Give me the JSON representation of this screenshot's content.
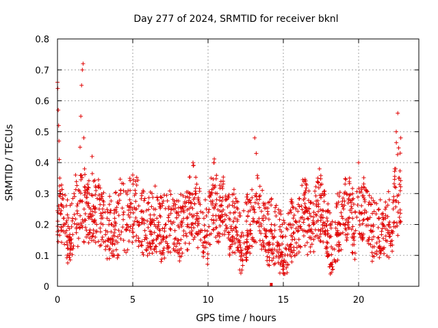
{
  "chart_data": {
    "type": "scatter",
    "title": "Day 277 of 2024, SRMTID for receiver bknl",
    "xlabel": "GPS time / hours",
    "ylabel": "SRMTID / TECUs",
    "xlim": [
      0,
      24
    ],
    "ylim": [
      0,
      0.8
    ],
    "xticks": [
      0,
      5,
      10,
      15,
      20
    ],
    "xtick_labels": [
      "0",
      "5",
      "10",
      "15",
      "20"
    ],
    "yticks": [
      0,
      0.1,
      0.2,
      0.3,
      0.4,
      0.5,
      0.6,
      0.7,
      0.8
    ],
    "ytick_labels": [
      "0",
      "0.1",
      "0.2",
      "0.3",
      "0.4",
      "0.5",
      "0.6",
      "0.7",
      "0.8"
    ],
    "grid": true,
    "marker": "plus",
    "color": "#e00000",
    "data_range_x": [
      0,
      22.8
    ],
    "marker_flag": {
      "x": 14.2,
      "y": 0
    },
    "series": [
      {
        "name": "SRMTID",
        "x": [
          0.0,
          0.02,
          0.05,
          0.08,
          0.1,
          0.12,
          0.15,
          0.2,
          0.3,
          0.4,
          0.5,
          0.6,
          0.7,
          0.8,
          0.9,
          1.0,
          1.1,
          1.2,
          1.3,
          1.4,
          1.5,
          1.55,
          1.6,
          1.65,
          1.7,
          1.75,
          1.8,
          1.9,
          2.0,
          2.1,
          2.2,
          2.3,
          2.4,
          2.5,
          2.6,
          2.7,
          2.8,
          2.9,
          3.0,
          3.2,
          3.4,
          3.6,
          3.8,
          4.0,
          4.2,
          4.4,
          4.6,
          4.8,
          5.0,
          5.2,
          5.4,
          5.6,
          5.8,
          6.0,
          6.2,
          6.4,
          6.6,
          6.8,
          7.0,
          7.2,
          7.4,
          7.6,
          7.8,
          8.0,
          8.2,
          8.4,
          8.6,
          8.8,
          9.0,
          9.2,
          9.4,
          9.6,
          9.8,
          10.0,
          10.2,
          10.4,
          10.6,
          10.8,
          11.0,
          11.2,
          11.4,
          11.6,
          11.8,
          12.0,
          12.2,
          12.4,
          12.6,
          12.8,
          13.0,
          13.1,
          13.2,
          13.3,
          13.4,
          13.6,
          13.8,
          14.0,
          14.2,
          14.4,
          14.6,
          14.8,
          15.0,
          15.2,
          15.4,
          15.6,
          15.8,
          16.0,
          16.2,
          16.4,
          16.6,
          16.8,
          17.0,
          17.2,
          17.4,
          17.6,
          17.8,
          18.0,
          18.2,
          18.4,
          18.6,
          18.8,
          19.0,
          19.2,
          19.4,
          19.6,
          19.8,
          20.0,
          20.2,
          20.4,
          20.6,
          20.8,
          21.0,
          21.2,
          21.4,
          21.6,
          21.8,
          22.0,
          22.2,
          22.3,
          22.4,
          22.5,
          22.6,
          22.7,
          22.8
        ],
        "y": [
          0.66,
          0.64,
          0.57,
          0.52,
          0.47,
          0.41,
          0.35,
          0.3,
          0.26,
          0.22,
          0.2,
          0.18,
          0.16,
          0.15,
          0.13,
          0.22,
          0.3,
          0.36,
          0.26,
          0.2,
          0.45,
          0.55,
          0.65,
          0.7,
          0.72,
          0.48,
          0.38,
          0.27,
          0.33,
          0.3,
          0.25,
          0.42,
          0.34,
          0.24,
          0.2,
          0.32,
          0.28,
          0.22,
          0.25,
          0.18,
          0.15,
          0.2,
          0.22,
          0.16,
          0.3,
          0.24,
          0.2,
          0.28,
          0.36,
          0.3,
          0.26,
          0.22,
          0.18,
          0.14,
          0.2,
          0.25,
          0.22,
          0.18,
          0.16,
          0.2,
          0.23,
          0.25,
          0.18,
          0.15,
          0.2,
          0.24,
          0.22,
          0.3,
          0.4,
          0.3,
          0.22,
          0.18,
          0.16,
          0.14,
          0.35,
          0.4,
          0.3,
          0.26,
          0.34,
          0.28,
          0.22,
          0.18,
          0.24,
          0.15,
          0.1,
          0.14,
          0.18,
          0.2,
          0.25,
          0.48,
          0.43,
          0.35,
          0.29,
          0.22,
          0.17,
          0.14,
          0.18,
          0.16,
          0.13,
          0.1,
          0.08,
          0.06,
          0.12,
          0.16,
          0.21,
          0.18,
          0.26,
          0.3,
          0.22,
          0.18,
          0.2,
          0.26,
          0.38,
          0.3,
          0.18,
          0.1,
          0.07,
          0.12,
          0.18,
          0.2,
          0.25,
          0.3,
          0.35,
          0.22,
          0.18,
          0.4,
          0.32,
          0.28,
          0.22,
          0.18,
          0.16,
          0.14,
          0.13,
          0.2,
          0.22,
          0.2,
          0.18,
          0.25,
          0.38,
          0.5,
          0.56,
          0.35,
          0.48
        ]
      }
    ]
  }
}
